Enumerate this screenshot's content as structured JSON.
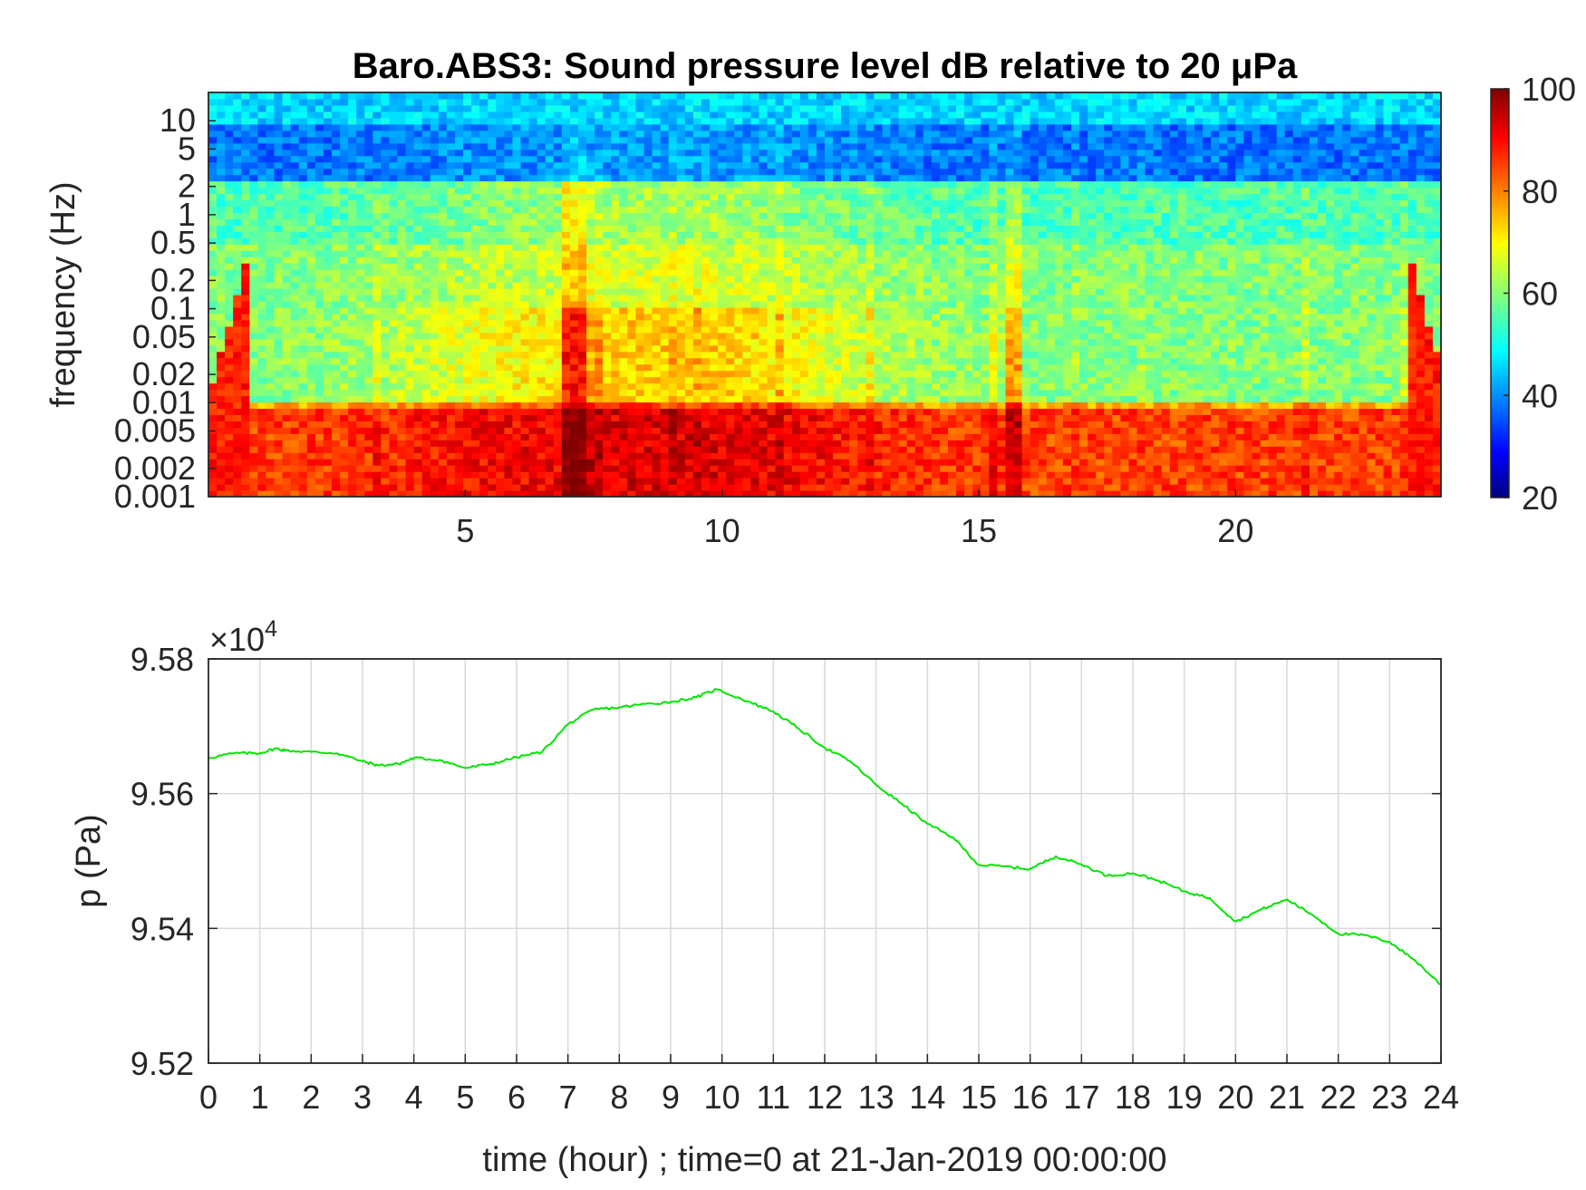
{
  "chart_data": [
    {
      "type": "heatmap",
      "title": "Baro.ABS3: Sound pressure level dB relative to 20 μPa",
      "ylabel": "frequency (Hz)",
      "xlabel": "",
      "x_ticks": [
        5,
        10,
        15,
        20
      ],
      "x_tick_labels": [
        "5",
        "10",
        "15",
        "20"
      ],
      "xlim": [
        0,
        24
      ],
      "y_scale": "log",
      "ylim": [
        0.001,
        20
      ],
      "y_ticks": [
        0.001,
        0.002,
        0.005,
        0.01,
        0.02,
        0.05,
        0.1,
        0.2,
        0.5,
        1,
        2,
        5,
        10
      ],
      "y_tick_labels": [
        "0.001",
        "0.002",
        "0.005",
        "0.01",
        "0.02",
        "0.05",
        "0.1",
        "0.2",
        "0.5",
        "1",
        "2",
        "5",
        "10"
      ],
      "colorbar": {
        "colormap": "jet",
        "range": [
          20,
          100
        ],
        "ticks": [
          20,
          40,
          60,
          80,
          100
        ],
        "tick_labels": [
          "20",
          "40",
          "60",
          "80",
          "100"
        ]
      },
      "grid": false
    },
    {
      "type": "line",
      "xlabel": "time (hour) ; time=0 at 21-Jan-2019 00:00:00",
      "ylabel": "p (Pa)",
      "xlim": [
        0,
        24
      ],
      "ylim": [
        95200,
        95800
      ],
      "x_ticks": [
        0,
        1,
        2,
        3,
        4,
        5,
        6,
        7,
        8,
        9,
        10,
        11,
        12,
        13,
        14,
        15,
        16,
        17,
        18,
        19,
        20,
        21,
        22,
        23,
        24
      ],
      "x_tick_labels": [
        "0",
        "1",
        "2",
        "3",
        "4",
        "5",
        "6",
        "7",
        "8",
        "9",
        "10",
        "11",
        "12",
        "13",
        "14",
        "15",
        "16",
        "17",
        "18",
        "19",
        "20",
        "21",
        "22",
        "23",
        "24"
      ],
      "y_ticks": [
        95200,
        95400,
        95600,
        95800
      ],
      "y_tick_labels": [
        "9.52",
        "9.54",
        "9.56",
        "9.58"
      ],
      "y_exponent_label": "×10",
      "y_exponent_power": "4",
      "grid": true,
      "line_color": "#00e600",
      "x": [
        0,
        0.5,
        1,
        1.3,
        1.5,
        2,
        2.5,
        3,
        3.3,
        3.7,
        4,
        4.5,
        5,
        5.5,
        6,
        6.5,
        7,
        7.5,
        8,
        8.5,
        9,
        9.5,
        9.9,
        10.5,
        11,
        11.5,
        12,
        12.5,
        13,
        13.5,
        14,
        14.5,
        15,
        15.5,
        16,
        16.5,
        17,
        17.5,
        18,
        18.5,
        19,
        19.5,
        20,
        20.5,
        21,
        21.5,
        22,
        22.5,
        23,
        23.5,
        24
      ],
      "y": [
        95653,
        95660,
        95660,
        95667,
        95664,
        95662,
        95660,
        95648,
        95642,
        95644,
        95653,
        95650,
        95638,
        95644,
        95654,
        95662,
        95703,
        95725,
        95728,
        95733,
        95736,
        95743,
        95755,
        95737,
        95722,
        95696,
        95668,
        95648,
        95613,
        95585,
        95555,
        95535,
        95494,
        95492,
        95488,
        95507,
        95495,
        95478,
        95482,
        95471,
        95455,
        95445,
        95410,
        95428,
        95443,
        95420,
        95392,
        95390,
        95380,
        95352,
        95316
      ]
    }
  ]
}
